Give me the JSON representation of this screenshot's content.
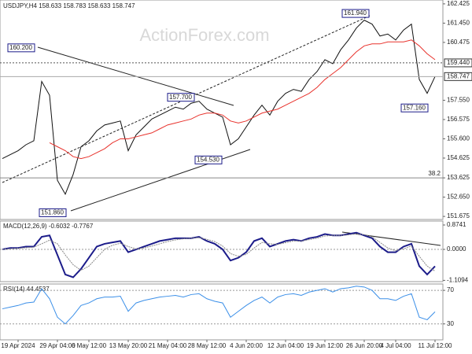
{
  "chart_data": [
    {
      "type": "line",
      "title": "USDJPY,H4 158.633 158.783 158.633 158.747",
      "watermark": "ActionForex.com",
      "categories": [
        null,
        null,
        "19 Apr 2024",
        null,
        null,
        null,
        null,
        "29 Apr 04:00",
        null,
        null,
        null,
        "6 May 12:00",
        null,
        null,
        null,
        null,
        "13 May 20:00",
        null,
        null,
        null,
        null,
        "21 May 04:00",
        null,
        null,
        null,
        null,
        "28 May 12:00",
        null,
        null,
        null,
        null,
        "4 Jun 20:00",
        null,
        null,
        null,
        null,
        "12 Jun 04:00",
        null,
        null,
        null,
        null,
        "19 Jun 12:00",
        null,
        null,
        null,
        null,
        "26 Jun 20:00",
        null,
        null,
        null,
        "4 Jul 04:00",
        null,
        null,
        null,
        null,
        "11 Jul 12:00"
      ],
      "series": [
        {
          "color": "#111111",
          "values": [
            154.6,
            154.8,
            155.0,
            155.3,
            155.5,
            158.5,
            157.8,
            153.5,
            152.8,
            153.8,
            155.2,
            155.5,
            156.0,
            156.3,
            156.4,
            156.5,
            155.0,
            155.8,
            156.2,
            156.6,
            156.8,
            157.0,
            157.2,
            157.1,
            157.4,
            157.5,
            157.1,
            156.9,
            156.7,
            155.3,
            155.6,
            156.2,
            156.8,
            157.3,
            156.8,
            157.5,
            157.9,
            158.1,
            158.0,
            158.6,
            159.0,
            159.6,
            159.4,
            160.1,
            160.6,
            161.2,
            161.6,
            161.4,
            160.8,
            160.9,
            160.6,
            161.1,
            161.4,
            158.6,
            157.9,
            158.747
          ]
        },
        {
          "color": "#e8322c",
          "values": [
            null,
            null,
            null,
            null,
            null,
            null,
            155.4,
            155.2,
            155.0,
            154.7,
            154.6,
            154.7,
            154.9,
            155.1,
            155.4,
            155.6,
            155.6,
            155.7,
            155.8,
            155.9,
            156.1,
            156.3,
            156.4,
            156.5,
            156.6,
            156.8,
            156.9,
            156.9,
            156.8,
            156.5,
            156.4,
            156.5,
            156.7,
            156.9,
            157.0,
            157.1,
            157.3,
            157.5,
            157.7,
            157.9,
            158.2,
            158.6,
            158.9,
            159.2,
            159.6,
            160.0,
            160.3,
            160.4,
            160.4,
            160.5,
            160.5,
            160.5,
            160.6,
            160.3,
            159.9,
            159.6
          ]
        }
      ],
      "ylim": [
        151.52,
        162.62
      ],
      "yticks": [
        162.425,
        {
          "value": 161.45,
          "label": "161.450"
        },
        160.475,
        {
          "value": 157.55,
          "label": "157.550"
        },
        156.575,
        {
          "value": 155.6,
          "label": "155.600"
        },
        154.625,
        153.625,
        {
          "value": 152.65,
          "label": "152.650"
        },
        151.675
      ],
      "annotations": [
        {
          "value": 160.2,
          "label": "160.200"
        },
        {
          "value": 157.7,
          "label": "157.700"
        },
        {
          "value": 154.53,
          "label": "154.530"
        },
        {
          "value": 151.86,
          "label": "151.860"
        },
        {
          "value": 161.94,
          "label": "161.940"
        },
        {
          "value": 157.16,
          "label": "157.160"
        }
      ],
      "levels": [
        {
          "value": 159.44,
          "label": "159.440"
        },
        {
          "value": 158.747,
          "label": "158.747"
        }
      ],
      "fib_level": 38.2
    },
    {
      "type": "line",
      "title": "MACD(12,26,9) -0.6032 -0.7767",
      "series": [
        {
          "color": "#1c1c8a",
          "values": [
            0,
            0.05,
            0.05,
            0.1,
            0.1,
            0.45,
            0.5,
            -0.2,
            -0.9,
            -1.0,
            -0.7,
            -0.3,
            0.1,
            0.2,
            0.25,
            0.3,
            -0.1,
            0,
            0.1,
            0.2,
            0.3,
            0.35,
            0.4,
            0.4,
            0.4,
            0.45,
            0.3,
            0.2,
            0,
            -0.4,
            -0.3,
            -0.1,
            0.3,
            0.4,
            0.1,
            0.2,
            0.3,
            0.35,
            0.3,
            0.4,
            0.45,
            0.55,
            0.5,
            0.5,
            0.55,
            0.6,
            0.5,
            0.4,
            0.1,
            -0.1,
            -0.1,
            0.1,
            0.2,
            -0.6,
            -0.9,
            -0.6032
          ]
        },
        {
          "color": "#888888",
          "values": [
            0,
            0.02,
            0.04,
            0.06,
            0.08,
            0.2,
            0.33,
            0.2,
            -0.2,
            -0.55,
            -0.75,
            -0.6,
            -0.3,
            0,
            0.15,
            0.22,
            0.1,
            0.02,
            0.05,
            0.12,
            0.2,
            0.28,
            0.34,
            0.38,
            0.4,
            0.42,
            0.36,
            0.28,
            0.12,
            -0.15,
            -0.25,
            -0.18,
            0.05,
            0.25,
            0.2,
            0.18,
            0.24,
            0.3,
            0.3,
            0.35,
            0.4,
            0.48,
            0.5,
            0.5,
            0.52,
            0.56,
            0.53,
            0.45,
            0.25,
            0.05,
            -0.05,
            0.02,
            0.12,
            -0.25,
            -0.6,
            -0.7767
          ]
        }
      ],
      "ylim": [
        -1.155,
        1.015
      ],
      "yticks": [
        0.8741,
        {
          "value": 0,
          "label": "0.0000"
        },
        -1.1094
      ]
    },
    {
      "type": "line",
      "title": "RSI(14) 44.4537",
      "series": [
        {
          "color": "#3b8fe8",
          "values": [
            48,
            50,
            52,
            55,
            56,
            72,
            60,
            38,
            30,
            40,
            52,
            55,
            60,
            62,
            62,
            63,
            45,
            55,
            58,
            60,
            62,
            63,
            64,
            62,
            65,
            66,
            60,
            57,
            55,
            38,
            45,
            52,
            58,
            62,
            55,
            62,
            65,
            66,
            64,
            68,
            70,
            72,
            68,
            72,
            73,
            75,
            74,
            70,
            60,
            60,
            58,
            63,
            66,
            38,
            35,
            44.4537
          ]
        }
      ],
      "ylim": [
        11,
        77.6
      ],
      "yticks": [
        70,
        30
      ]
    }
  ]
}
